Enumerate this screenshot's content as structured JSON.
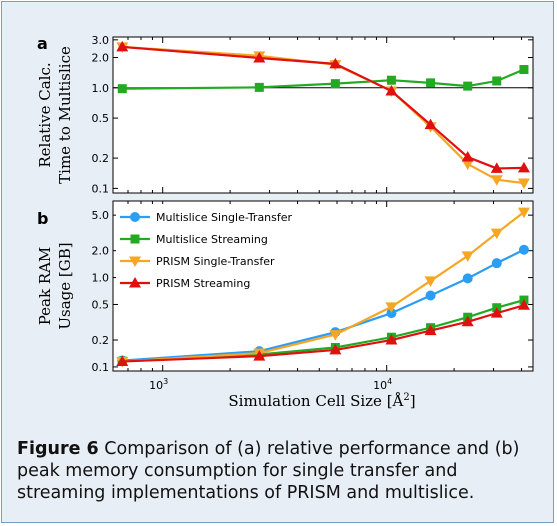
{
  "figure": {
    "caption_label": "Figure 6",
    "caption_text": "Comparison of (a) relative performance and (b) peak memory consumption for single transfer and streaming implementations of PRISM and multislice."
  },
  "chart_data": [
    {
      "type": "line",
      "panel_label": "a",
      "ylabel": [
        "Relative Calc.",
        "Time to Multislice"
      ],
      "xscale": "log",
      "yscale": "log",
      "xlim": [
        600,
        45000
      ],
      "ylim": [
        0.09,
        3.2
      ],
      "yticks": [
        3.0,
        2.0,
        1.0,
        0.5,
        0.2,
        0.1
      ],
      "ytick_labels": [
        "3.0",
        "2.0",
        "1.0",
        "0.5",
        "0.2",
        "0.1"
      ],
      "reference_line": 1.0,
      "x": [
        660,
        2700,
        5900,
        10500,
        15700,
        23000,
        31000,
        41000
      ],
      "series": [
        {
          "name": "Multislice Streaming",
          "color": "#22aa22",
          "marker": "square",
          "values": [
            0.98,
            1.01,
            1.1,
            1.19,
            1.12,
            1.04,
            1.17,
            1.52
          ]
        },
        {
          "name": "PRISM Single-Transfer",
          "color": "#f5a623",
          "marker": "triangle-down",
          "values": [
            2.55,
            2.08,
            1.7,
            0.93,
            0.41,
            0.175,
            0.122,
            0.113
          ]
        },
        {
          "name": "PRISM Streaming",
          "color": "#e01010",
          "marker": "triangle-up",
          "values": [
            2.55,
            1.98,
            1.73,
            0.93,
            0.43,
            0.205,
            0.158,
            0.16
          ]
        }
      ]
    },
    {
      "type": "line",
      "panel_label": "b",
      "ylabel": [
        "Peak RAM",
        "Usage [GB]"
      ],
      "xlabel": "Simulation Cell Size [Å²]",
      "xscale": "log",
      "yscale": "log",
      "xlim": [
        600,
        45000
      ],
      "ylim": [
        0.09,
        7.2
      ],
      "yticks": [
        5.0,
        2.0,
        1.0,
        0.5,
        0.2,
        0.1
      ],
      "ytick_labels": [
        "5.0",
        "2.0",
        "1.0",
        "0.5",
        "0.2",
        "0.1"
      ],
      "xticks": [
        1000,
        10000
      ],
      "xtick_labels": [
        {
          "base": "10",
          "exp": "3"
        },
        {
          "base": "10",
          "exp": "4"
        }
      ],
      "legend_position": "top-left",
      "x": [
        660,
        2700,
        5900,
        10500,
        15700,
        23000,
        31000,
        41000
      ],
      "series": [
        {
          "name": "Multislice Single-Transfer",
          "color": "#2a9df4",
          "marker": "circle",
          "values": [
            0.118,
            0.15,
            0.245,
            0.4,
            0.63,
            0.98,
            1.45,
            2.05
          ]
        },
        {
          "name": "Multislice Streaming",
          "color": "#22aa22",
          "marker": "square",
          "values": [
            0.116,
            0.138,
            0.165,
            0.215,
            0.275,
            0.36,
            0.46,
            0.56
          ]
        },
        {
          "name": "PRISM Single-Transfer",
          "color": "#f5a623",
          "marker": "triangle-down",
          "values": [
            0.115,
            0.143,
            0.23,
            0.47,
            0.92,
            1.75,
            3.15,
            5.4
          ]
        },
        {
          "name": "PRISM Streaming",
          "color": "#e01010",
          "marker": "triangle-up",
          "values": [
            0.115,
            0.132,
            0.155,
            0.2,
            0.255,
            0.32,
            0.4,
            0.49
          ]
        }
      ]
    }
  ]
}
